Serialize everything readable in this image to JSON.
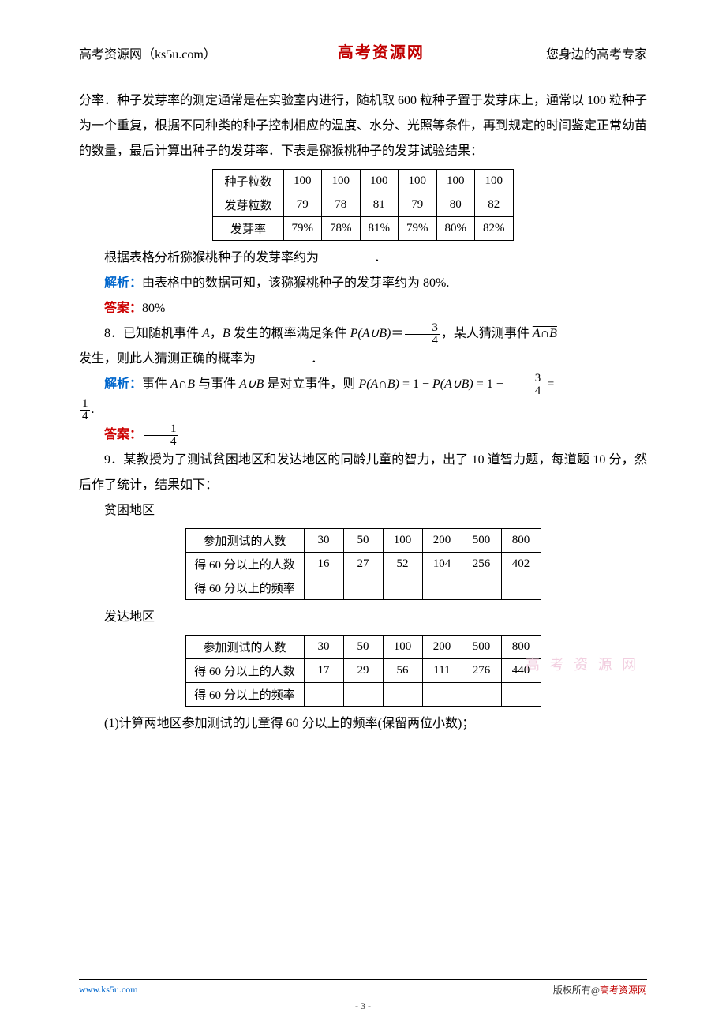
{
  "header": {
    "left": "高考资源网（ks5u.com）",
    "center": "高考资源网",
    "right": "您身边的高考专家"
  },
  "intro": {
    "p1": "分率．种子发芽率的测定通常是在实验室内进行，随机取 600 粒种子置于发芽床上，通常以 100 粒种子为一个重复，根据不同种类的种子控制相应的温度、水分、光照等条件，再到规定的时间鉴定正常幼苗的数量，最后计算出种子的发芽率．下表是猕猴桃种子的发芽试验结果："
  },
  "table1": {
    "rows": [
      [
        "种子粒数",
        "100",
        "100",
        "100",
        "100",
        "100",
        "100"
      ],
      [
        "发芽粒数",
        "79",
        "78",
        "81",
        "79",
        "80",
        "82"
      ],
      [
        "发芽率",
        "79%",
        "78%",
        "81%",
        "79%",
        "80%",
        "82%"
      ]
    ]
  },
  "q7": {
    "after_table": "根据表格分析猕猴桃种子的发芽率约为",
    "period": "．",
    "analysis_label": "解析：",
    "analysis": "由表格中的数据可知，该猕猴桃种子的发芽率约为 80%.",
    "answer_label": "答案：",
    "answer": "80%"
  },
  "q8": {
    "num": "8．",
    "text_a": "已知随机事件 ",
    "A": "A",
    "comma1": "，",
    "B": "B",
    "text_b": " 发生的概率满足条件 ",
    "PAuB": "P(A∪B)",
    "eq": "＝",
    "frac1": {
      "num": "3",
      "den": "4"
    },
    "text_c": "，某人猜测事件 ",
    "AcapB_over": "A∩B",
    "text_d": " 发生，则此人猜测正确的概率为",
    "analysis_label": "解析：",
    "analysis_a": "事件 ",
    "analysis_b": " 与事件 ",
    "AuB": "A∪B",
    "analysis_c": " 是对立事件，则 ",
    "PoverAcapB": "P(A∩B)",
    "eq1": " = 1 − ",
    "PAuB2": "P(A∪B)",
    "eq2": " = 1 − ",
    "frac2": {
      "num": "3",
      "den": "4"
    },
    "eq3": " = ",
    "frac_res": {
      "num": "1",
      "den": "4"
    },
    "dot": ".",
    "answer_label": "答案：",
    "ans_frac": {
      "num": "1",
      "den": "4"
    }
  },
  "q9": {
    "num": "9．",
    "text": "某教授为了测试贫困地区和发达地区的同龄儿童的智力，出了 10 道智力题，每道题 10 分，然后作了统计，结果如下：",
    "region1": "贫困地区",
    "region2": "发达地区",
    "table_poor": {
      "rows": [
        [
          "参加测试的人数",
          "30",
          "50",
          "100",
          "200",
          "500",
          "800"
        ],
        [
          "得 60 分以上的人数",
          "16",
          "27",
          "52",
          "104",
          "256",
          "402"
        ],
        [
          "得 60 分以上的频率",
          "",
          "",
          "",
          "",
          "",
          ""
        ]
      ]
    },
    "table_rich": {
      "rows": [
        [
          "参加测试的人数",
          "30",
          "50",
          "100",
          "200",
          "500",
          "800"
        ],
        [
          "得 60 分以上的人数",
          "17",
          "29",
          "56",
          "111",
          "276",
          "440"
        ],
        [
          "得 60 分以上的频率",
          "",
          "",
          "",
          "",
          "",
          ""
        ]
      ]
    },
    "sub1": "(1)计算两地区参加测试的儿童得 60 分以上的频率(保留两位小数)；"
  },
  "watermark": "高 考 资 源 网",
  "footer": {
    "left": "www.ks5u.com",
    "right_plain": "版权所有@",
    "right_red": "高考资源网",
    "page": "- 3 -"
  }
}
